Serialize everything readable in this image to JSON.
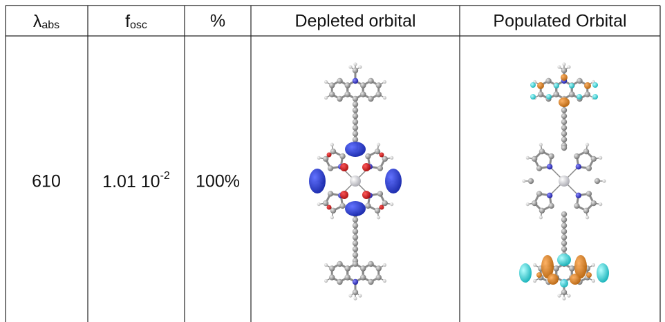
{
  "table": {
    "header": [
      {
        "text": "λ",
        "sub": "abs"
      },
      {
        "text": "f",
        "sub": "osc"
      },
      {
        "text": "%"
      },
      {
        "text": "Depleted orbital"
      },
      {
        "text": "Populated Orbital"
      }
    ],
    "rows": [
      [
        {
          "text": "610"
        },
        {
          "text": "1.01 10",
          "sup": "-2"
        },
        {
          "text": "100%"
        }
      ]
    ]
  }
}
